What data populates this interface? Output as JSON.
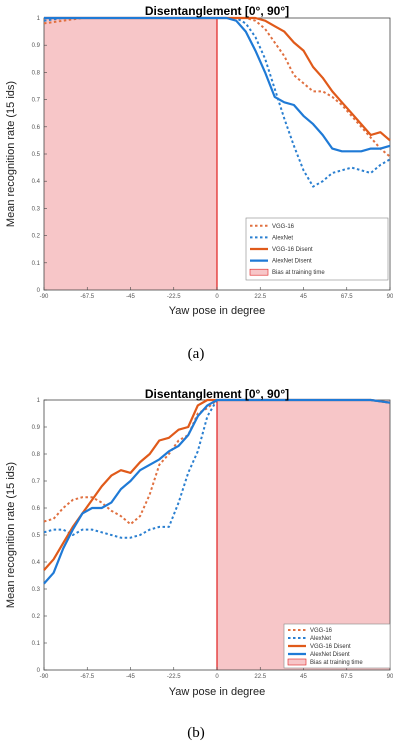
{
  "chart_data": [
    {
      "type": "line",
      "title": "Disentanglement [0°, 90°]",
      "xlabel": "Yaw pose in degree",
      "ylabel": "Mean recognition rate (15 ids)",
      "caption": "(a)",
      "xlim": [
        -90,
        90
      ],
      "ylim": [
        0,
        1
      ],
      "xticks": [
        -90,
        -67.5,
        -45,
        -22.5,
        0,
        22.5,
        45,
        67.5,
        90
      ],
      "xtick_labels": [
        "-90",
        "-67.5",
        "-45",
        "-22.5",
        "0",
        "22.5",
        "45",
        "67.5",
        "90"
      ],
      "yticks": [
        0,
        0.1,
        0.2,
        0.3,
        0.4,
        0.5,
        0.6,
        0.7,
        0.8,
        0.9,
        1
      ],
      "ytick_labels": [
        "0",
        "0.1",
        "0.2",
        "0.3",
        "0.4",
        "0.5",
        "0.6",
        "0.7",
        "0.8",
        "0.9",
        "1"
      ],
      "training_range": [
        0,
        90
      ],
      "shaded_region": [
        -90,
        0
      ],
      "legend_position": "bottom-right",
      "legend_box_label": "Bias at training time",
      "x": [
        -90,
        -80,
        -70,
        -60,
        -50,
        -40,
        -30,
        -20,
        -10,
        0,
        5,
        10,
        15,
        20,
        25,
        30,
        35,
        40,
        45,
        50,
        55,
        60,
        65,
        70,
        75,
        80,
        85,
        90
      ],
      "series": [
        {
          "name": "VGG-16",
          "color": "#e07040",
          "style": "dotted",
          "values": [
            0.98,
            0.99,
            1.0,
            1.0,
            1.0,
            1.0,
            1.0,
            1.0,
            1.0,
            1.0,
            1.0,
            1.0,
            1.0,
            0.99,
            0.96,
            0.91,
            0.86,
            0.79,
            0.76,
            0.73,
            0.73,
            0.71,
            0.68,
            0.64,
            0.6,
            0.56,
            0.52,
            0.49
          ]
        },
        {
          "name": "AlexNet",
          "color": "#2a7fd0",
          "style": "dotted",
          "values": [
            0.99,
            1.0,
            1.0,
            1.0,
            1.0,
            1.0,
            1.0,
            1.0,
            1.0,
            1.0,
            1.0,
            1.0,
            0.98,
            0.93,
            0.85,
            0.74,
            0.63,
            0.53,
            0.44,
            0.38,
            0.4,
            0.43,
            0.44,
            0.45,
            0.44,
            0.43,
            0.46,
            0.48
          ]
        },
        {
          "name": "VGG-16 Disent",
          "color": "#e05a1a",
          "style": "solid",
          "values": [
            1.0,
            1.0,
            1.0,
            1.0,
            1.0,
            1.0,
            1.0,
            1.0,
            1.0,
            1.0,
            1.0,
            1.0,
            1.0,
            1.0,
            0.99,
            0.97,
            0.95,
            0.91,
            0.88,
            0.82,
            0.78,
            0.73,
            0.69,
            0.65,
            0.61,
            0.57,
            0.58,
            0.55
          ]
        },
        {
          "name": "AlexNet Disent",
          "color": "#1f7ad6",
          "style": "solid",
          "values": [
            1.0,
            1.0,
            1.0,
            1.0,
            1.0,
            1.0,
            1.0,
            1.0,
            1.0,
            1.0,
            1.0,
            0.99,
            0.95,
            0.88,
            0.8,
            0.71,
            0.69,
            0.68,
            0.64,
            0.61,
            0.57,
            0.52,
            0.51,
            0.51,
            0.51,
            0.52,
            0.52,
            0.53
          ]
        }
      ]
    },
    {
      "type": "line",
      "title": "Disentanglement [0°, 90°]",
      "xlabel": "Yaw pose in degree",
      "ylabel": "Mean recognition rate (15 ids)",
      "caption": "(b)",
      "xlim": [
        -90,
        90
      ],
      "ylim": [
        0,
        1
      ],
      "xticks": [
        -90,
        -67.5,
        -45,
        -22.5,
        0,
        22.5,
        45,
        67.5,
        90
      ],
      "xtick_labels": [
        "-90",
        "-67.5",
        "-45",
        "-22.5",
        "0",
        "22.5",
        "45",
        "67.5",
        "90"
      ],
      "yticks": [
        0,
        0.1,
        0.2,
        0.3,
        0.4,
        0.5,
        0.6,
        0.7,
        0.8,
        0.9,
        1
      ],
      "ytick_labels": [
        "0",
        "0.1",
        "0.2",
        "0.3",
        "0.4",
        "0.5",
        "0.6",
        "0.7",
        "0.8",
        "0.9",
        "1"
      ],
      "training_range": [
        -90,
        0
      ],
      "shaded_region": [
        0,
        90
      ],
      "legend_position": "bottom-right",
      "legend_box_label": "Bias at training time",
      "x": [
        -90,
        -85,
        -80,
        -75,
        -70,
        -65,
        -60,
        -55,
        -50,
        -45,
        -40,
        -35,
        -30,
        -25,
        -20,
        -15,
        -10,
        -5,
        0,
        10,
        20,
        30,
        40,
        50,
        60,
        70,
        80,
        90
      ],
      "series": [
        {
          "name": "VGG-16",
          "color": "#e07040",
          "style": "dotted",
          "values": [
            0.55,
            0.56,
            0.6,
            0.63,
            0.64,
            0.64,
            0.62,
            0.59,
            0.57,
            0.54,
            0.57,
            0.65,
            0.76,
            0.8,
            0.85,
            0.87,
            0.95,
            0.97,
            1.0,
            1.0,
            1.0,
            1.0,
            1.0,
            1.0,
            1.0,
            1.0,
            1.0,
            0.99
          ]
        },
        {
          "name": "AlexNet",
          "color": "#2a7fd0",
          "style": "dotted",
          "values": [
            0.51,
            0.52,
            0.52,
            0.5,
            0.52,
            0.52,
            0.51,
            0.5,
            0.49,
            0.49,
            0.5,
            0.52,
            0.53,
            0.53,
            0.62,
            0.73,
            0.81,
            0.94,
            1.0,
            1.0,
            1.0,
            1.0,
            1.0,
            1.0,
            1.0,
            1.0,
            1.0,
            0.99
          ]
        },
        {
          "name": "VGG-16 Disent",
          "color": "#e05a1a",
          "style": "solid",
          "values": [
            0.37,
            0.41,
            0.47,
            0.53,
            0.58,
            0.63,
            0.68,
            0.72,
            0.74,
            0.73,
            0.77,
            0.8,
            0.85,
            0.86,
            0.89,
            0.9,
            0.98,
            1.0,
            1.0,
            1.0,
            1.0,
            1.0,
            1.0,
            1.0,
            1.0,
            1.0,
            1.0,
            0.99
          ]
        },
        {
          "name": "AlexNet Disent",
          "color": "#1f7ad6",
          "style": "solid",
          "values": [
            0.32,
            0.36,
            0.45,
            0.52,
            0.58,
            0.6,
            0.6,
            0.62,
            0.67,
            0.7,
            0.74,
            0.76,
            0.78,
            0.81,
            0.83,
            0.87,
            0.94,
            0.98,
            1.0,
            1.0,
            1.0,
            1.0,
            1.0,
            1.0,
            1.0,
            1.0,
            1.0,
            0.99
          ]
        }
      ]
    }
  ]
}
